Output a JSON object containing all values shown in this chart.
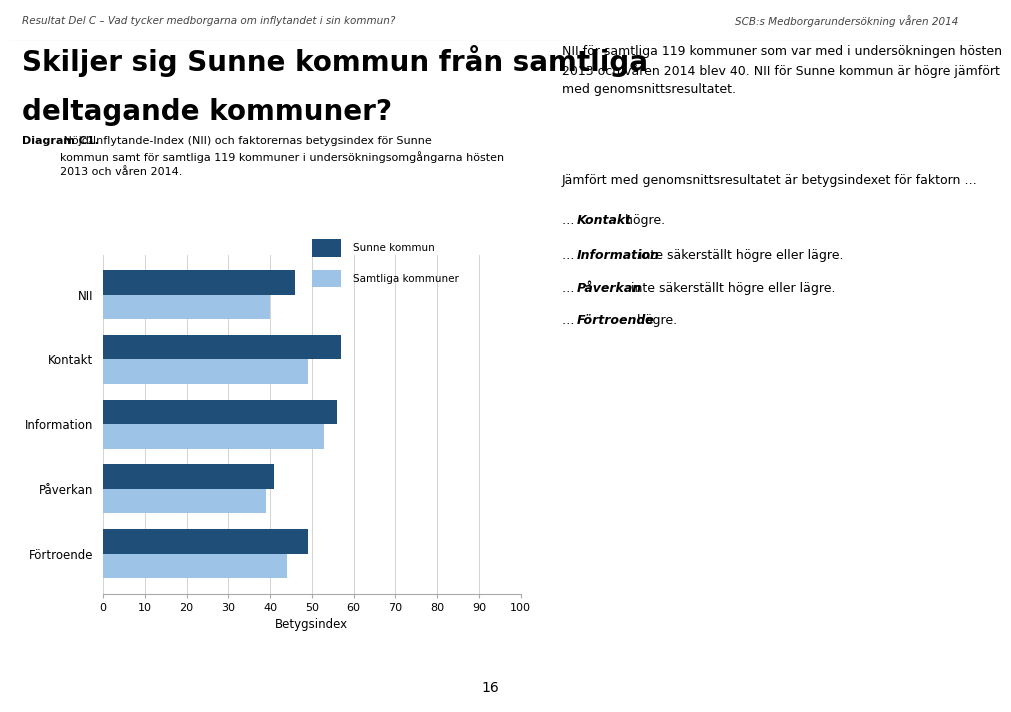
{
  "categories": [
    "NII",
    "Kontakt",
    "Information",
    "Påverkan",
    "Förtroende"
  ],
  "sunne_values": [
    46,
    57,
    56,
    41,
    49
  ],
  "samtliga_values": [
    40,
    49,
    53,
    39,
    44
  ],
  "sunne_color": "#1F4E79",
  "samtliga_color": "#9DC3E6",
  "xlabel": "Betygsindex",
  "xlim": [
    0,
    100
  ],
  "xticks": [
    0,
    10,
    20,
    30,
    40,
    50,
    60,
    70,
    80,
    90,
    100
  ],
  "legend_sunne": "Sunne kommun",
  "legend_samtliga": "Samtliga kommuner",
  "bar_height": 0.38,
  "figure_bg": "#FFFFFF",
  "axes_bg": "#FFFFFF",
  "grid_color": "#CCCCCC",
  "header_left": "Resultat Del C – Vad tycker medborgarna om inflytandet i sin kommun?",
  "header_right": "SCB:s Medborgarundersökning våren 2014",
  "page_title_line1": "Skiljer sig Sunne kommun från samtliga",
  "page_title_line2": "deltagande kommuner?",
  "diagram_caption_bold": "Diagram C1.",
  "diagram_caption_normal": " Nöjd-Inflytande-Index (NII) och faktorernas betygsindex för Sunne\nkommun samt för samtliga 119 kommuner i undersökningsomgångarna hösten\n2013 och våren 2014.",
  "right_para1": "NII för samtliga 119 kommuner som var med i undersökningen hösten\n2013 och våren 2014 blev 40. NII för Sunne kommun är högre jämfört\nmed genomsnittsresultatet.",
  "right_para2": "Jämfört med genomsnittsresultatet är betygsindexet för faktorn …",
  "right_bullet1_pre": "… ",
  "right_bullet1_bold": "Kontakt",
  "right_bullet1_post": " högre.",
  "right_bullet2_pre": "… ",
  "right_bullet2_bold": "Information",
  "right_bullet2_post": " inte säkerställt högre eller lägre.",
  "right_bullet3_pre": "… ",
  "right_bullet3_bold": "Påverkan",
  "right_bullet3_post": " inte säkerställt högre eller lägre.",
  "right_bullet4_pre": "… ",
  "right_bullet4_bold": "Förtroende",
  "right_bullet4_post": " högre.",
  "page_number": "16",
  "divider_color": "#AAAAAA",
  "text_color": "#000000",
  "header_fontsize": 7.5,
  "title_fontsize": 20,
  "caption_fontsize": 8,
  "body_fontsize": 9,
  "chart_label_fontsize": 8.5,
  "chart_tick_fontsize": 8,
  "chart_xlabel_fontsize": 8.5,
  "legend_fontsize": 7.5
}
